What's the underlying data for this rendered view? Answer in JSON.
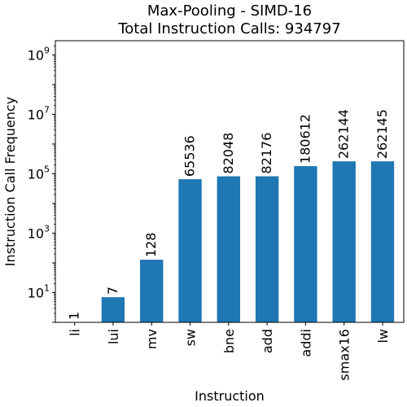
{
  "chart_data": {
    "type": "bar",
    "title": "Max-Pooling - SIMD-16",
    "subtitle": "Total Instruction Calls: 934797",
    "xlabel": "Instruction",
    "ylabel": "Instruction Call Frequency",
    "yscale": "log",
    "ylim": [
      1,
      3000000000
    ],
    "yticks": [
      {
        "base": "10",
        "exp": "1",
        "value": 10
      },
      {
        "base": "10",
        "exp": "3",
        "value": 1000
      },
      {
        "base": "10",
        "exp": "5",
        "value": 100000
      },
      {
        "base": "10",
        "exp": "7",
        "value": 10000000
      },
      {
        "base": "10",
        "exp": "9",
        "value": 1000000000
      }
    ],
    "categories": [
      "li",
      "lui",
      "mv",
      "sw",
      "bne",
      "add",
      "addi",
      "smax16",
      "lw"
    ],
    "values": [
      1,
      7,
      128,
      65536,
      82048,
      82176,
      180612,
      262144,
      262145
    ],
    "data_labels": [
      "1",
      "7",
      "128",
      "65536",
      "82048",
      "82176",
      "180612",
      "262144",
      "262145"
    ],
    "bar_color": "#1f77b4",
    "grid": false,
    "legend": "none"
  }
}
